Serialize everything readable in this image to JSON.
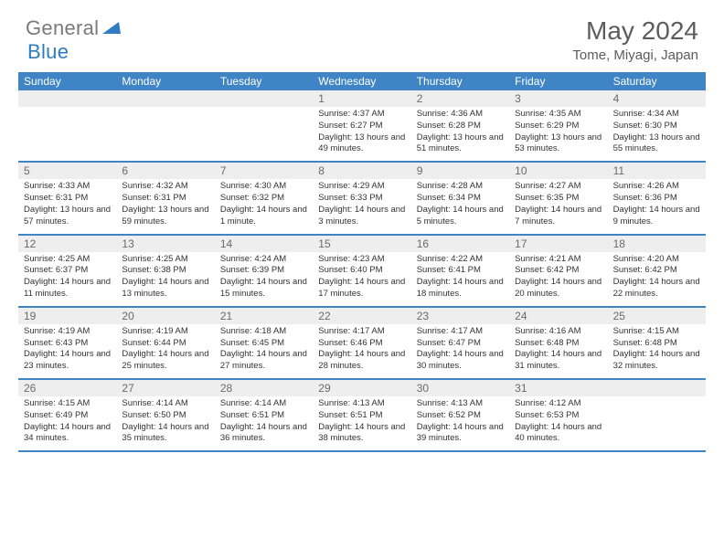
{
  "brand": {
    "name1": "General",
    "name2": "Blue"
  },
  "title": "May 2024",
  "location": "Tome, Miyagi, Japan",
  "colors": {
    "header_bg": "#3f84c4",
    "num_bg": "#eeeeee",
    "rule": "#3f84c4",
    "text": "#333333",
    "muted": "#6a6a6a"
  },
  "dow": [
    "Sunday",
    "Monday",
    "Tuesday",
    "Wednesday",
    "Thursday",
    "Friday",
    "Saturday"
  ],
  "weeks": [
    [
      null,
      null,
      null,
      {
        "n": "1",
        "sr": "4:37 AM",
        "ss": "6:27 PM",
        "dl": "13 hours and 49 minutes."
      },
      {
        "n": "2",
        "sr": "4:36 AM",
        "ss": "6:28 PM",
        "dl": "13 hours and 51 minutes."
      },
      {
        "n": "3",
        "sr": "4:35 AM",
        "ss": "6:29 PM",
        "dl": "13 hours and 53 minutes."
      },
      {
        "n": "4",
        "sr": "4:34 AM",
        "ss": "6:30 PM",
        "dl": "13 hours and 55 minutes."
      }
    ],
    [
      {
        "n": "5",
        "sr": "4:33 AM",
        "ss": "6:31 PM",
        "dl": "13 hours and 57 minutes."
      },
      {
        "n": "6",
        "sr": "4:32 AM",
        "ss": "6:31 PM",
        "dl": "13 hours and 59 minutes."
      },
      {
        "n": "7",
        "sr": "4:30 AM",
        "ss": "6:32 PM",
        "dl": "14 hours and 1 minute."
      },
      {
        "n": "8",
        "sr": "4:29 AM",
        "ss": "6:33 PM",
        "dl": "14 hours and 3 minutes."
      },
      {
        "n": "9",
        "sr": "4:28 AM",
        "ss": "6:34 PM",
        "dl": "14 hours and 5 minutes."
      },
      {
        "n": "10",
        "sr": "4:27 AM",
        "ss": "6:35 PM",
        "dl": "14 hours and 7 minutes."
      },
      {
        "n": "11",
        "sr": "4:26 AM",
        "ss": "6:36 PM",
        "dl": "14 hours and 9 minutes."
      }
    ],
    [
      {
        "n": "12",
        "sr": "4:25 AM",
        "ss": "6:37 PM",
        "dl": "14 hours and 11 minutes."
      },
      {
        "n": "13",
        "sr": "4:25 AM",
        "ss": "6:38 PM",
        "dl": "14 hours and 13 minutes."
      },
      {
        "n": "14",
        "sr": "4:24 AM",
        "ss": "6:39 PM",
        "dl": "14 hours and 15 minutes."
      },
      {
        "n": "15",
        "sr": "4:23 AM",
        "ss": "6:40 PM",
        "dl": "14 hours and 17 minutes."
      },
      {
        "n": "16",
        "sr": "4:22 AM",
        "ss": "6:41 PM",
        "dl": "14 hours and 18 minutes."
      },
      {
        "n": "17",
        "sr": "4:21 AM",
        "ss": "6:42 PM",
        "dl": "14 hours and 20 minutes."
      },
      {
        "n": "18",
        "sr": "4:20 AM",
        "ss": "6:42 PM",
        "dl": "14 hours and 22 minutes."
      }
    ],
    [
      {
        "n": "19",
        "sr": "4:19 AM",
        "ss": "6:43 PM",
        "dl": "14 hours and 23 minutes."
      },
      {
        "n": "20",
        "sr": "4:19 AM",
        "ss": "6:44 PM",
        "dl": "14 hours and 25 minutes."
      },
      {
        "n": "21",
        "sr": "4:18 AM",
        "ss": "6:45 PM",
        "dl": "14 hours and 27 minutes."
      },
      {
        "n": "22",
        "sr": "4:17 AM",
        "ss": "6:46 PM",
        "dl": "14 hours and 28 minutes."
      },
      {
        "n": "23",
        "sr": "4:17 AM",
        "ss": "6:47 PM",
        "dl": "14 hours and 30 minutes."
      },
      {
        "n": "24",
        "sr": "4:16 AM",
        "ss": "6:48 PM",
        "dl": "14 hours and 31 minutes."
      },
      {
        "n": "25",
        "sr": "4:15 AM",
        "ss": "6:48 PM",
        "dl": "14 hours and 32 minutes."
      }
    ],
    [
      {
        "n": "26",
        "sr": "4:15 AM",
        "ss": "6:49 PM",
        "dl": "14 hours and 34 minutes."
      },
      {
        "n": "27",
        "sr": "4:14 AM",
        "ss": "6:50 PM",
        "dl": "14 hours and 35 minutes."
      },
      {
        "n": "28",
        "sr": "4:14 AM",
        "ss": "6:51 PM",
        "dl": "14 hours and 36 minutes."
      },
      {
        "n": "29",
        "sr": "4:13 AM",
        "ss": "6:51 PM",
        "dl": "14 hours and 38 minutes."
      },
      {
        "n": "30",
        "sr": "4:13 AM",
        "ss": "6:52 PM",
        "dl": "14 hours and 39 minutes."
      },
      {
        "n": "31",
        "sr": "4:12 AM",
        "ss": "6:53 PM",
        "dl": "14 hours and 40 minutes."
      },
      null
    ]
  ],
  "labels": {
    "sunrise": "Sunrise: ",
    "sunset": "Sunset: ",
    "daylight": "Daylight: "
  }
}
